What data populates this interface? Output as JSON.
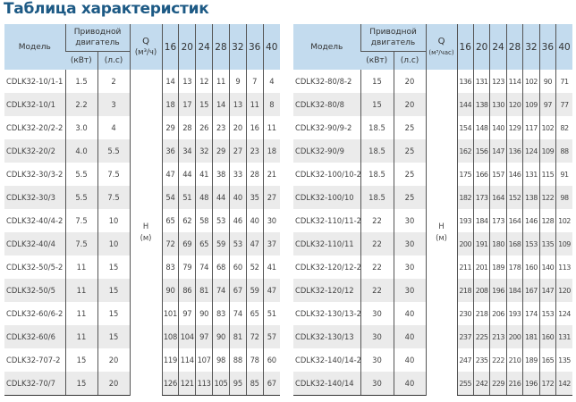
{
  "title": "Таблица характеристик",
  "colors": {
    "title": "#1d5a85",
    "header_bg": "#c3dbee",
    "stripe": "#ebebeb"
  },
  "tables": [
    {
      "headers": {
        "model": "Модель",
        "motor": "Приводной двигатель",
        "kw": "(кВт)",
        "hp": "(л.с)",
        "q": "Q",
        "q_unit": "(м³/ч)",
        "h": "H",
        "h_unit": "(м)",
        "flows": [
          "16",
          "20",
          "24",
          "28",
          "32",
          "36",
          "40"
        ]
      },
      "rows": [
        {
          "model": "CDLK32-10/1-1",
          "kw": "1.5",
          "hp": "2",
          "h": [
            "14",
            "13",
            "12",
            "11",
            "9",
            "7",
            "4"
          ]
        },
        {
          "model": "CDLK32-10/1",
          "kw": "2.2",
          "hp": "3",
          "h": [
            "18",
            "17",
            "15",
            "14",
            "13",
            "11",
            "8"
          ]
        },
        {
          "model": "CDLK32-20/2-2",
          "kw": "3.0",
          "hp": "4",
          "h": [
            "29",
            "28",
            "26",
            "23",
            "20",
            "16",
            "11"
          ]
        },
        {
          "model": "CDLK32-20/2",
          "kw": "4.0",
          "hp": "5.5",
          "h": [
            "36",
            "34",
            "32",
            "29",
            "27",
            "23",
            "18"
          ]
        },
        {
          "model": "CDLK32-30/3-2",
          "kw": "5.5",
          "hp": "7.5",
          "h": [
            "47",
            "44",
            "41",
            "38",
            "33",
            "28",
            "21"
          ]
        },
        {
          "model": "CDLK32-30/3",
          "kw": "5.5",
          "hp": "7.5",
          "h": [
            "54",
            "51",
            "48",
            "44",
            "40",
            "35",
            "27"
          ]
        },
        {
          "model": "CDLK32-40/4-2",
          "kw": "7.5",
          "hp": "10",
          "h": [
            "65",
            "62",
            "58",
            "53",
            "46",
            "40",
            "30"
          ]
        },
        {
          "model": "CDLK32-40/4",
          "kw": "7.5",
          "hp": "10",
          "h": [
            "72",
            "69",
            "65",
            "59",
            "53",
            "47",
            "37"
          ]
        },
        {
          "model": "CDLK32-50/5-2",
          "kw": "11",
          "hp": "15",
          "h": [
            "83",
            "79",
            "74",
            "68",
            "60",
            "52",
            "41"
          ]
        },
        {
          "model": "CDLK32-50/5",
          "kw": "11",
          "hp": "15",
          "h": [
            "90",
            "86",
            "81",
            "74",
            "67",
            "59",
            "47"
          ]
        },
        {
          "model": "CDLK32-60/6-2",
          "kw": "11",
          "hp": "15",
          "h": [
            "101",
            "97",
            "90",
            "83",
            "74",
            "65",
            "51"
          ]
        },
        {
          "model": "CDLK32-60/6",
          "kw": "11",
          "hp": "15",
          "h": [
            "108",
            "104",
            "97",
            "90",
            "81",
            "72",
            "57"
          ]
        },
        {
          "model": "CDLK32-707-2",
          "kw": "15",
          "hp": "20",
          "h": [
            "119",
            "114",
            "107",
            "98",
            "88",
            "78",
            "60"
          ]
        },
        {
          "model": "CDLK32-70/7",
          "kw": "15",
          "hp": "20",
          "h": [
            "126",
            "121",
            "113",
            "105",
            "95",
            "85",
            "67"
          ]
        }
      ]
    },
    {
      "headers": {
        "model": "Модель",
        "motor": "Приводной двигатель",
        "kw": "(кВт)",
        "hp": "(л.с)",
        "q": "Q",
        "q_unit": "(м³/час)",
        "h": "H",
        "h_unit": "(м)",
        "flows": [
          "16",
          "20",
          "24",
          "28",
          "32",
          "36",
          "40"
        ]
      },
      "rows": [
        {
          "model": "CDLK32-80/8-2",
          "kw": "15",
          "hp": "20",
          "h": [
            "136",
            "131",
            "123",
            "114",
            "102",
            "90",
            "71"
          ]
        },
        {
          "model": "CDLK32-80/8",
          "kw": "15",
          "hp": "20",
          "h": [
            "144",
            "138",
            "130",
            "120",
            "109",
            "97",
            "77"
          ]
        },
        {
          "model": "CDLK32-90/9-2",
          "kw": "18.5",
          "hp": "25",
          "h": [
            "154",
            "148",
            "140",
            "129",
            "117",
            "102",
            "82"
          ]
        },
        {
          "model": "CDLK32-90/9",
          "kw": "18.5",
          "hp": "25",
          "h": [
            "162",
            "156",
            "147",
            "136",
            "124",
            "109",
            "88"
          ]
        },
        {
          "model": "CDLK32-100/10-2",
          "kw": "18.5",
          "hp": "25",
          "h": [
            "175",
            "166",
            "157",
            "146",
            "131",
            "115",
            "91"
          ]
        },
        {
          "model": "CDLK32-100/10",
          "kw": "18.5",
          "hp": "25",
          "h": [
            "182",
            "173",
            "164",
            "152",
            "138",
            "122",
            "98"
          ]
        },
        {
          "model": "CDLK32-110/11-2",
          "kw": "22",
          "hp": "30",
          "h": [
            "193",
            "184",
            "173",
            "164",
            "146",
            "128",
            "102"
          ]
        },
        {
          "model": "CDLK32-110/11",
          "kw": "22",
          "hp": "30",
          "h": [
            "200",
            "191",
            "180",
            "168",
            "153",
            "135",
            "109"
          ]
        },
        {
          "model": "CDLK32-120/12-2",
          "kw": "22",
          "hp": "30",
          "h": [
            "211",
            "201",
            "189",
            "178",
            "160",
            "140",
            "113"
          ]
        },
        {
          "model": "CDLK32-120/12",
          "kw": "22",
          "hp": "30",
          "h": [
            "218",
            "208",
            "196",
            "184",
            "167",
            "147",
            "120"
          ]
        },
        {
          "model": "CDLK32-130/13-2",
          "kw": "30",
          "hp": "40",
          "h": [
            "230",
            "218",
            "206",
            "193",
            "174",
            "153",
            "124"
          ]
        },
        {
          "model": "CDLK32-130/13",
          "kw": "30",
          "hp": "40",
          "h": [
            "237",
            "225",
            "213",
            "200",
            "181",
            "160",
            "131"
          ]
        },
        {
          "model": "CDLK32-140/14-2",
          "kw": "30",
          "hp": "40",
          "h": [
            "247",
            "235",
            "222",
            "210",
            "189",
            "165",
            "135"
          ]
        },
        {
          "model": "CDLK32-140/14",
          "kw": "30",
          "hp": "40",
          "h": [
            "255",
            "242",
            "229",
            "216",
            "196",
            "172",
            "142"
          ]
        }
      ]
    }
  ]
}
